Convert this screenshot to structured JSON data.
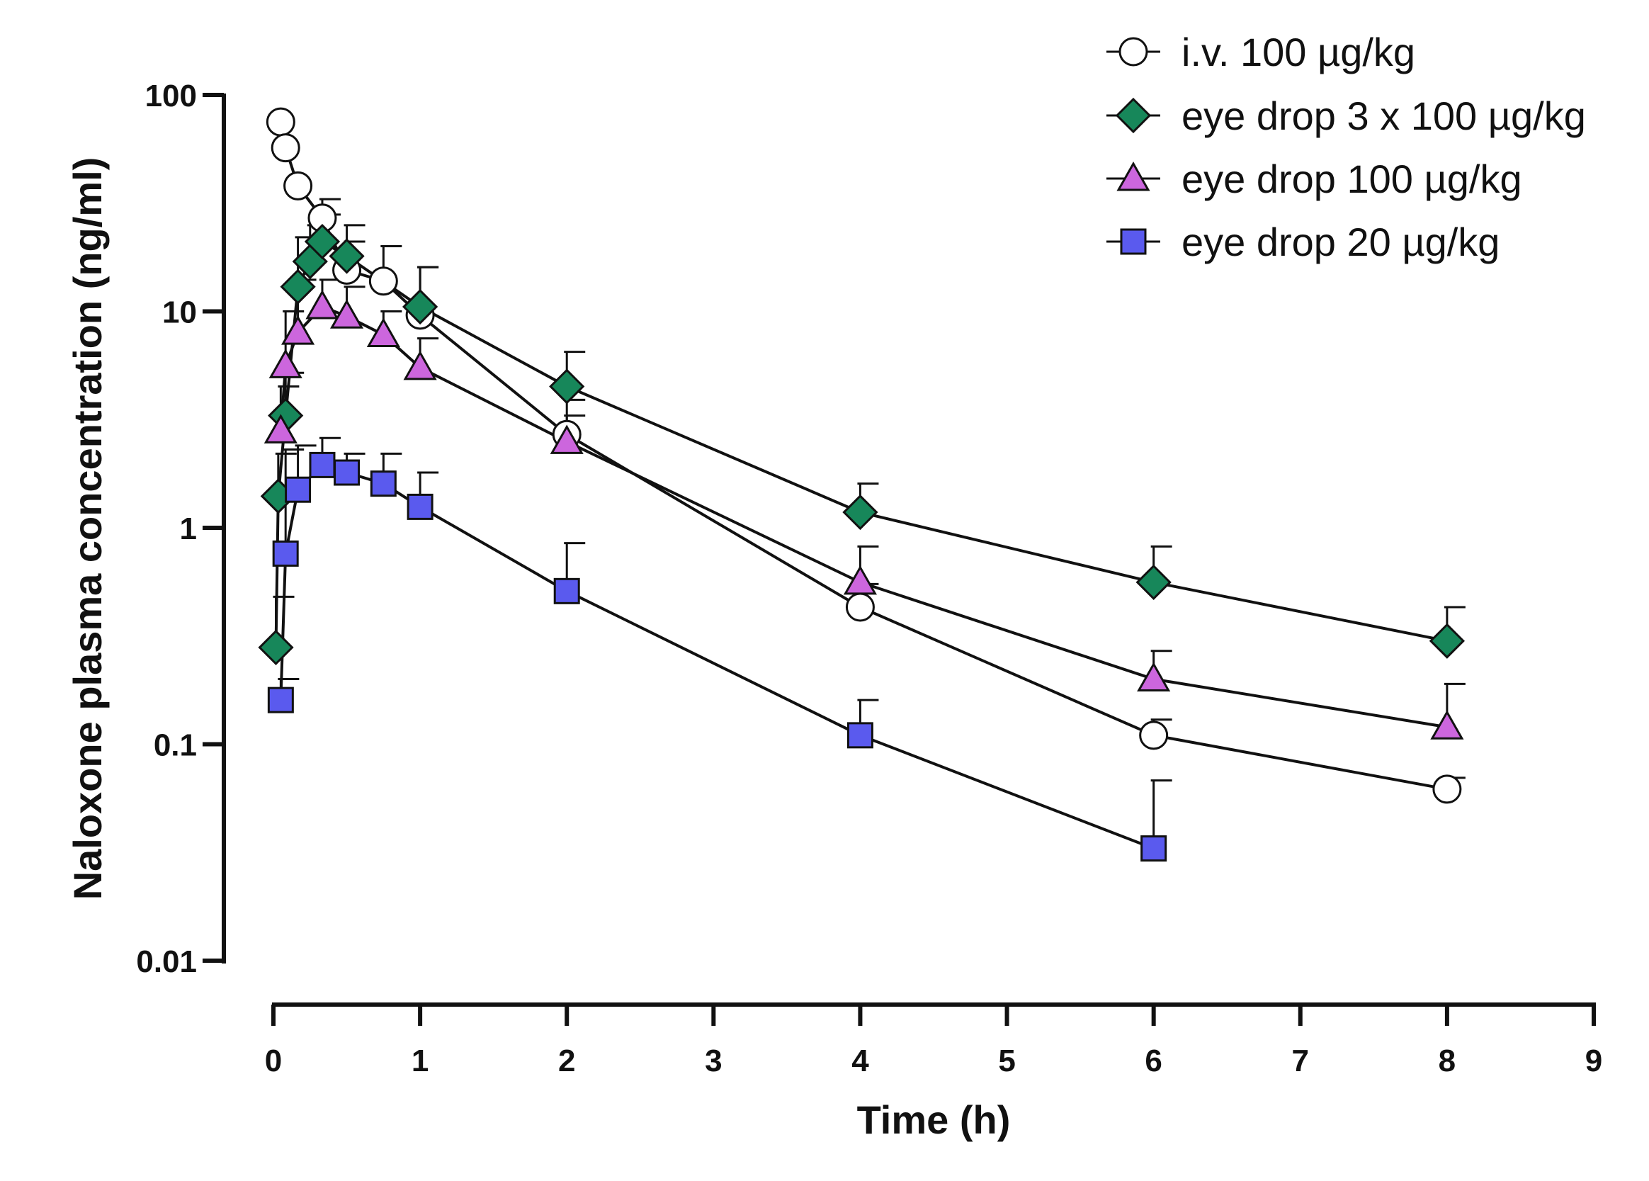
{
  "chart_data": {
    "type": "line",
    "title": "",
    "xlabel": "Time (h)",
    "ylabel": "Naloxone plasma concentration  (ng/ml)",
    "xlim": [
      0,
      9
    ],
    "ylim": [
      0.01,
      100
    ],
    "yscale": "log",
    "xticks": [
      0,
      1,
      2,
      3,
      4,
      5,
      6,
      7,
      8,
      9
    ],
    "xtick_labels": [
      "0",
      "1",
      "2",
      "3",
      "4",
      "5",
      "6",
      "7",
      "8",
      "9"
    ],
    "yticks": [
      0.01,
      0.1,
      1,
      10,
      100
    ],
    "ytick_labels": [
      "0.01",
      "0.1",
      "1",
      "10",
      "100"
    ],
    "legend_position": "top-right",
    "series": [
      {
        "name": "i.v. 100 µg/kg",
        "marker": "circle",
        "fill": "#ffffff",
        "x": [
          0.05,
          0.083,
          0.167,
          0.333,
          0.5,
          0.75,
          1,
          2,
          4,
          6,
          8
        ],
        "y": [
          75,
          57,
          38,
          27,
          15.5,
          13.8,
          9.6,
          2.7,
          0.43,
          0.11,
          0.062
        ],
        "err_upper": [
          null,
          null,
          null,
          33,
          21,
          20,
          16,
          3.9,
          0.55,
          0.13,
          0.07
        ]
      },
      {
        "name": "eye drop 3 x 100 µg/kg",
        "marker": "diamond",
        "fill": "#17875a",
        "x": [
          0.017,
          0.033,
          0.083,
          0.167,
          0.25,
          0.333,
          0.5,
          1,
          2,
          4,
          6,
          8
        ],
        "y": [
          0.28,
          1.4,
          3.3,
          13,
          17,
          21,
          18,
          10.5,
          4.5,
          1.18,
          0.56,
          0.3
        ],
        "err_upper": [
          0.48,
          2.2,
          5.2,
          22,
          25,
          28,
          25,
          16,
          6.5,
          1.6,
          0.82,
          0.43
        ]
      },
      {
        "name": "eye drop 100 µg/kg",
        "marker": "triangle",
        "fill": "#cc66dd",
        "x": [
          0.05,
          0.083,
          0.167,
          0.333,
          0.5,
          0.75,
          1,
          2,
          4,
          6,
          8
        ],
        "y": [
          2.8,
          5.6,
          8.0,
          10.5,
          9.5,
          7.8,
          5.5,
          2.5,
          0.56,
          0.2,
          0.12
        ],
        "err_upper": [
          4.5,
          10,
          14,
          14,
          13,
          10,
          7.5,
          3.3,
          0.82,
          0.27,
          0.19
        ]
      },
      {
        "name": "eye drop 20 µg/kg",
        "marker": "square",
        "fill": "#5a5aee",
        "x": [
          0.05,
          0.083,
          0.167,
          0.333,
          0.5,
          0.75,
          1,
          2,
          4,
          6
        ],
        "y": [
          0.16,
          0.76,
          1.5,
          1.95,
          1.8,
          1.6,
          1.25,
          0.51,
          0.11,
          0.033
        ],
        "err_upper": [
          0.2,
          2.3,
          2.4,
          2.6,
          2.2,
          2.2,
          1.8,
          0.85,
          0.16,
          0.068
        ]
      }
    ]
  }
}
